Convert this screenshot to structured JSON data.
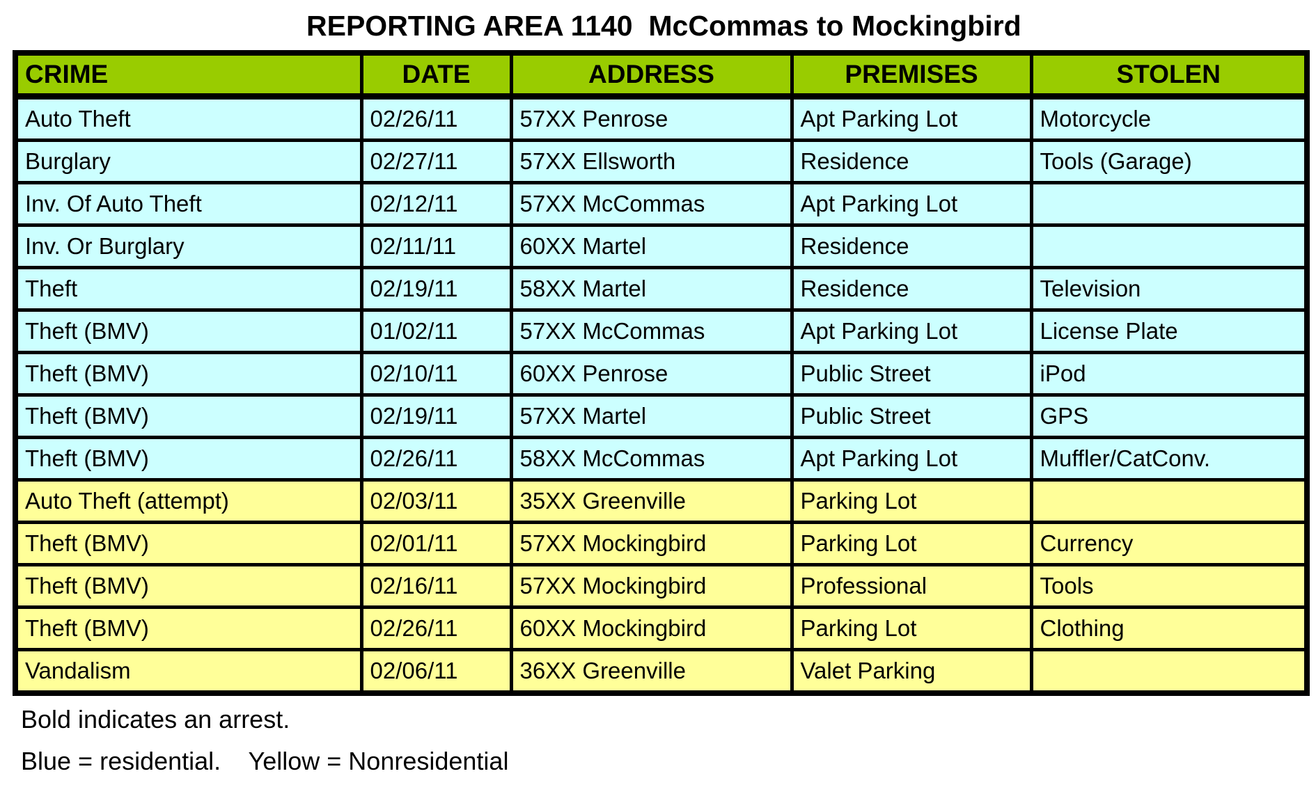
{
  "title": "REPORTING AREA 1140  McCommas to Mockingbird",
  "colors": {
    "header_green": "#99CC00",
    "residential_blue": "#CCFFFF",
    "nonresidential_yellow": "#FFFF99",
    "border_black": "#000000"
  },
  "table": {
    "columns": [
      "CRIME",
      "DATE",
      "ADDRESS",
      "PREMISES",
      "STOLEN"
    ],
    "rows": [
      {
        "crime": "Auto Theft",
        "date": "02/26/11",
        "address": "57XX Penrose",
        "premises": "Apt Parking Lot",
        "stolen": "Motorcycle",
        "zone": "residential"
      },
      {
        "crime": "Burglary",
        "date": "02/27/11",
        "address": "57XX Ellsworth",
        "premises": "Residence",
        "stolen": "Tools (Garage)",
        "zone": "residential"
      },
      {
        "crime": "Inv. Of Auto Theft",
        "date": "02/12/11",
        "address": "57XX McCommas",
        "premises": "Apt Parking Lot",
        "stolen": "",
        "zone": "residential"
      },
      {
        "crime": "Inv. Or Burglary",
        "date": "02/11/11",
        "address": "60XX Martel",
        "premises": "Residence",
        "stolen": "",
        "zone": "residential"
      },
      {
        "crime": "Theft",
        "date": "02/19/11",
        "address": "58XX Martel",
        "premises": "Residence",
        "stolen": "Television",
        "zone": "residential"
      },
      {
        "crime": "Theft (BMV)",
        "date": "01/02/11",
        "address": "57XX McCommas",
        "premises": "Apt Parking Lot",
        "stolen": "License Plate",
        "zone": "residential"
      },
      {
        "crime": "Theft (BMV)",
        "date": "02/10/11",
        "address": "60XX Penrose",
        "premises": "Public Street",
        "stolen": "iPod",
        "zone": "residential"
      },
      {
        "crime": "Theft (BMV)",
        "date": "02/19/11",
        "address": "57XX Martel",
        "premises": "Public Street",
        "stolen": "GPS",
        "zone": "residential"
      },
      {
        "crime": "Theft (BMV)",
        "date": "02/26/11",
        "address": "58XX McCommas",
        "premises": "Apt Parking Lot",
        "stolen": "Muffler/CatConv.",
        "zone": "residential"
      },
      {
        "crime": "Auto Theft (attempt)",
        "date": "02/03/11",
        "address": "35XX Greenville",
        "premises": "Parking Lot",
        "stolen": "",
        "zone": "nonresidential"
      },
      {
        "crime": "Theft (BMV)",
        "date": "02/01/11",
        "address": "57XX Mockingbird",
        "premises": "Parking Lot",
        "stolen": "Currency",
        "zone": "nonresidential"
      },
      {
        "crime": "Theft (BMV)",
        "date": "02/16/11",
        "address": "57XX Mockingbird",
        "premises": "Professional",
        "stolen": "Tools",
        "zone": "nonresidential"
      },
      {
        "crime": "Theft (BMV)",
        "date": "02/26/11",
        "address": "60XX Mockingbird",
        "premises": "Parking Lot",
        "stolen": "Clothing",
        "zone": "nonresidential"
      },
      {
        "crime": "Vandalism",
        "date": "02/06/11",
        "address": "36XX Greenville",
        "premises": "Valet Parking",
        "stolen": "",
        "zone": "nonresidential"
      }
    ]
  },
  "footer": {
    "line1": "Bold indicates an arrest.",
    "line2": "Blue = residential.    Yellow = Nonresidential"
  }
}
